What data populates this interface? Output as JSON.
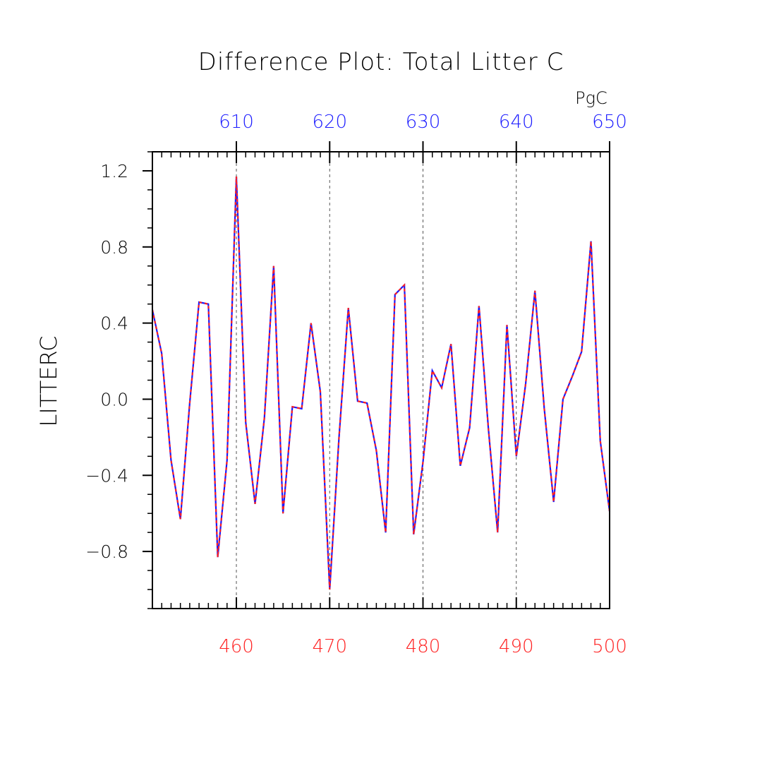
{
  "chart_data": {
    "type": "line",
    "title": "Difference Plot: Total Litter C",
    "ylabel": "LITTERC",
    "top_axis_unit": "PgC",
    "xlim": [
      451,
      500
    ],
    "ylim": [
      -1.1,
      1.3
    ],
    "x_ticks": [
      460,
      470,
      480,
      490,
      500
    ],
    "top_x_ticks": [
      610,
      620,
      630,
      640,
      650
    ],
    "top_offset": 150,
    "y_ticks": [
      -0.8,
      -0.4,
      0.0,
      0.4,
      0.8,
      1.2
    ],
    "y_tick_labels": [
      "−0.8",
      "−0.4",
      "0.0",
      "0.4",
      "0.8",
      "1.2"
    ],
    "x_tick_labels": [
      "460",
      "470",
      "480",
      "490",
      "500"
    ],
    "top_x_tick_labels": [
      "610",
      "620",
      "630",
      "640",
      "650"
    ],
    "grid": "vertical dashed at major x ticks",
    "colors": {
      "series_a": "#1a1aff",
      "series_b": "#ff2020",
      "axis": "#000000",
      "grid": "#555555"
    },
    "x": [
      451,
      452,
      453,
      454,
      455,
      456,
      457,
      458,
      459,
      460,
      461,
      462,
      463,
      464,
      465,
      466,
      467,
      468,
      469,
      470,
      471,
      472,
      473,
      474,
      475,
      476,
      477,
      478,
      479,
      480,
      481,
      482,
      483,
      484,
      485,
      486,
      487,
      488,
      489,
      490,
      491,
      492,
      493,
      494,
      495,
      496,
      497,
      498,
      499,
      500
    ],
    "series": [
      {
        "values": [
          0.47,
          0.24,
          -0.32,
          -0.63,
          -0.02,
          0.51,
          0.5,
          -0.83,
          -0.32,
          1.17,
          -0.12,
          -0.55,
          -0.1,
          0.7,
          -0.6,
          -0.04,
          -0.05,
          0.4,
          0.04,
          -1.0,
          -0.2,
          0.48,
          -0.01,
          -0.02,
          -0.27,
          -0.7,
          0.55,
          0.6,
          -0.71,
          -0.33,
          0.15,
          0.06,
          0.29,
          -0.35,
          -0.15,
          0.49,
          -0.15,
          -0.7,
          0.39,
          -0.3,
          0.08,
          0.57,
          -0.05,
          -0.54,
          0.0,
          0.12,
          0.25,
          0.83,
          -0.22,
          -0.59
        ]
      }
    ]
  }
}
